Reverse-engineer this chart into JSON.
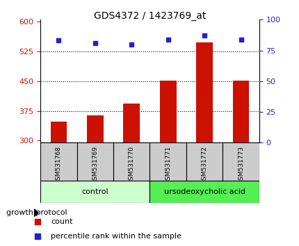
{
  "title": "GDS4372 / 1423769_at",
  "samples": [
    "GSM531768",
    "GSM531769",
    "GSM531770",
    "GSM531771",
    "GSM531772",
    "GSM531773"
  ],
  "bar_values": [
    348,
    363,
    393,
    452,
    548,
    452
  ],
  "percentile_values": [
    83,
    81,
    80,
    84,
    87,
    84
  ],
  "bar_bottom": 295,
  "ylim_left": [
    295,
    605
  ],
  "ylim_right": [
    0,
    100
  ],
  "yticks_left": [
    300,
    375,
    450,
    525,
    600
  ],
  "yticks_right": [
    0,
    25,
    50,
    75,
    100
  ],
  "bar_color": "#cc1100",
  "dot_color": "#2222cc",
  "control_label": "control",
  "treatment_label": "ursodeoxycholic acid",
  "control_bg": "#ccffcc",
  "treatment_bg": "#55ee55",
  "sample_box_bg": "#cccccc",
  "growth_protocol_label": "growth protocol",
  "legend_count_label": "count",
  "legend_percentile_label": "percentile rank within the sample",
  "bar_width": 0.45,
  "hgrid_lines": [
    375,
    450,
    525
  ],
  "fig_width": 4.31,
  "fig_height": 3.54,
  "dpi": 100
}
